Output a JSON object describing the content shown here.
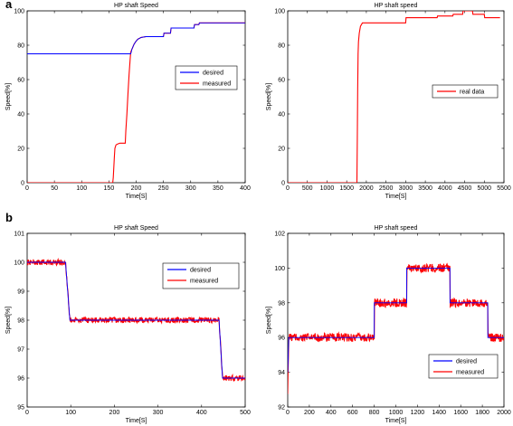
{
  "panel_labels": [
    "a",
    "b"
  ],
  "chart_data": [
    {
      "type": "line",
      "title": "HP shaft Speed",
      "xlabel": "Time[S]",
      "ylabel": "Speed[%]",
      "xlim": [
        0,
        400
      ],
      "ylim": [
        0,
        100
      ],
      "xticks": [
        0,
        50,
        100,
        150,
        200,
        250,
        300,
        350,
        400
      ],
      "yticks": [
        0,
        20,
        40,
        60,
        80,
        100
      ],
      "legend_position": "middle-right",
      "series": [
        {
          "name": "desired",
          "color": "#0000ff",
          "x": [
            0,
            190,
            191,
            192,
            194,
            196,
            199,
            203,
            209,
            218,
            230,
            250,
            251,
            263,
            264,
            306,
            307,
            315,
            316,
            400
          ],
          "y": [
            75,
            75,
            76,
            77.5,
            79,
            80.5,
            82,
            83.5,
            84.5,
            85,
            85,
            85,
            87,
            87,
            90,
            90,
            92,
            92,
            93,
            93
          ]
        },
        {
          "name": "measured",
          "color": "#ff0000",
          "x": [
            0,
            157,
            158,
            160,
            161,
            163,
            166,
            170,
            175,
            180,
            181,
            183,
            185,
            187,
            189,
            190,
            192,
            194,
            196,
            199,
            203,
            209,
            218,
            230,
            250,
            251,
            263,
            264,
            306,
            307,
            315,
            316,
            400
          ],
          "y": [
            0,
            0,
            3,
            15,
            20,
            22,
            22.5,
            23,
            23,
            23,
            30,
            40,
            52,
            63,
            72,
            76,
            77.5,
            79,
            80.5,
            82,
            83.5,
            84.5,
            85,
            85,
            85,
            87,
            87,
            90,
            90,
            92,
            92,
            93,
            93
          ]
        }
      ]
    },
    {
      "type": "line",
      "title": "HP shaft speed",
      "xlabel": "Time[S]",
      "ylabel": "Speed[%]",
      "xlim": [
        0,
        5500
      ],
      "ylim": [
        0,
        100
      ],
      "xticks": [
        0,
        500,
        1000,
        1500,
        2000,
        2500,
        3000,
        3500,
        4000,
        4500,
        5000,
        5500
      ],
      "yticks": [
        0,
        20,
        40,
        60,
        80,
        100
      ],
      "legend_position": "middle-right",
      "series": [
        {
          "name": "real data",
          "color": "#ff0000",
          "x": [
            0,
            1760,
            1770,
            1780,
            1790,
            1800,
            1820,
            1850,
            1900,
            3000,
            3010,
            3800,
            3810,
            4200,
            4210,
            4450,
            4460,
            4700,
            4710,
            5000,
            5010,
            5400
          ],
          "y": [
            0,
            0,
            25,
            55,
            75,
            82,
            87,
            91,
            93,
            93,
            96,
            96,
            97,
            97,
            98,
            98,
            100,
            100,
            98,
            98,
            96,
            96
          ]
        }
      ]
    },
    {
      "type": "line",
      "title": "HP shaft Speed",
      "xlabel": "Time[S]",
      "ylabel": "Speed[%]",
      "xlim": [
        0,
        500
      ],
      "ylim": [
        95,
        101
      ],
      "xticks": [
        0,
        100,
        200,
        300,
        400,
        500
      ],
      "yticks": [
        95,
        96,
        97,
        98,
        99,
        100,
        101
      ],
      "legend_position": "top-right",
      "series": [
        {
          "name": "desired",
          "color": "#0000ff",
          "x": [
            0,
            88,
            98,
            440,
            448,
            500
          ],
          "y": [
            100,
            100,
            98,
            98,
            96,
            96
          ]
        },
        {
          "name": "measured",
          "color": "#ff0000",
          "x": [
            0,
            88,
            98,
            440,
            448,
            500
          ],
          "y": [
            100,
            100,
            98,
            98,
            96,
            96
          ],
          "noise_amplitude": 0.1
        }
      ]
    },
    {
      "type": "line",
      "title": "HP shaft  speed",
      "xlabel": "Time[S]",
      "ylabel": "Speed[%]",
      "xlim": [
        0,
        2000
      ],
      "ylim": [
        92,
        102
      ],
      "xticks": [
        0,
        200,
        400,
        600,
        800,
        1000,
        1200,
        1400,
        1600,
        1800,
        2000
      ],
      "yticks": [
        92,
        94,
        96,
        98,
        100,
        102
      ],
      "legend_position": "bottom-right",
      "series": [
        {
          "name": "desired",
          "color": "#0000ff",
          "x": [
            0,
            10,
            800,
            801,
            1100,
            1101,
            1500,
            1501,
            1850,
            1851,
            2000
          ],
          "y": [
            94,
            96,
            96,
            98,
            98,
            100,
            100,
            98,
            98,
            96,
            96
          ]
        },
        {
          "name": "measured",
          "color": "#ff0000",
          "x": [
            0,
            10,
            800,
            801,
            1100,
            1101,
            1500,
            1501,
            1850,
            1851,
            2000
          ],
          "y": [
            93,
            96,
            96,
            98,
            98,
            100,
            100,
            98,
            98,
            96,
            96
          ],
          "noise_amplitude": 0.25
        }
      ]
    }
  ]
}
